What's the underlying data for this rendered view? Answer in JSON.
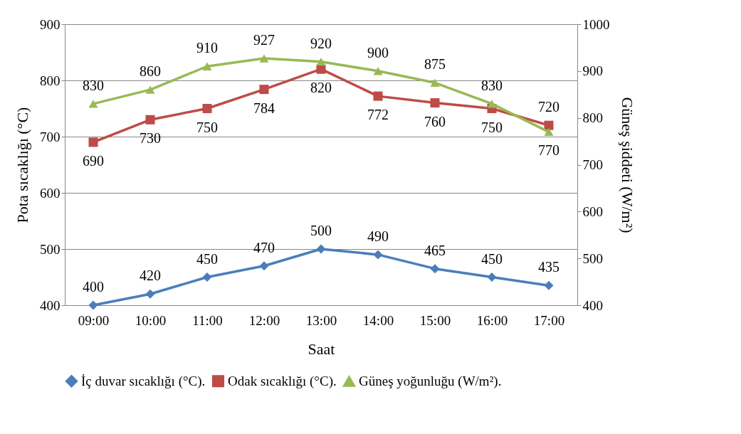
{
  "chart_data": {
    "type": "line",
    "categories": [
      "09:00",
      "10:00",
      "11:00",
      "12:00",
      "13:00",
      "14:00",
      "15:00",
      "16:00",
      "17:00"
    ],
    "xlabel": "Saat",
    "ylabel": "Pota sıcaklığı (°C)",
    "y2label": "Güneş şiddeti (W/m²)",
    "ylim": [
      400,
      900
    ],
    "yticks": [
      400,
      500,
      600,
      700,
      800,
      900
    ],
    "y2lim": [
      400,
      1000
    ],
    "y2ticks": [
      400,
      500,
      600,
      700,
      800,
      900,
      1000
    ],
    "series": [
      {
        "name": "İç duvar sıcaklığı (°C).",
        "color": "#4a7ebb",
        "marker": "diamond",
        "values": [
          400,
          420,
          450,
          470,
          500,
          490,
          465,
          450,
          435
        ]
      },
      {
        "name": "Odak sıcaklığı (°C).",
        "color": "#be4b48",
        "marker": "square",
        "values": [
          690,
          730,
          750,
          784,
          820,
          772,
          760,
          750,
          720
        ]
      },
      {
        "name": "Güneş yoğunluğu (W/m²).",
        "color": "#98b954",
        "marker": "triangle",
        "axis": "y2",
        "values": [
          830,
          860,
          910,
          927,
          920,
          900,
          875,
          830,
          770
        ]
      }
    ],
    "data_labels": true,
    "grid": "y",
    "legend": "bottom",
    "line_style": "solid"
  }
}
